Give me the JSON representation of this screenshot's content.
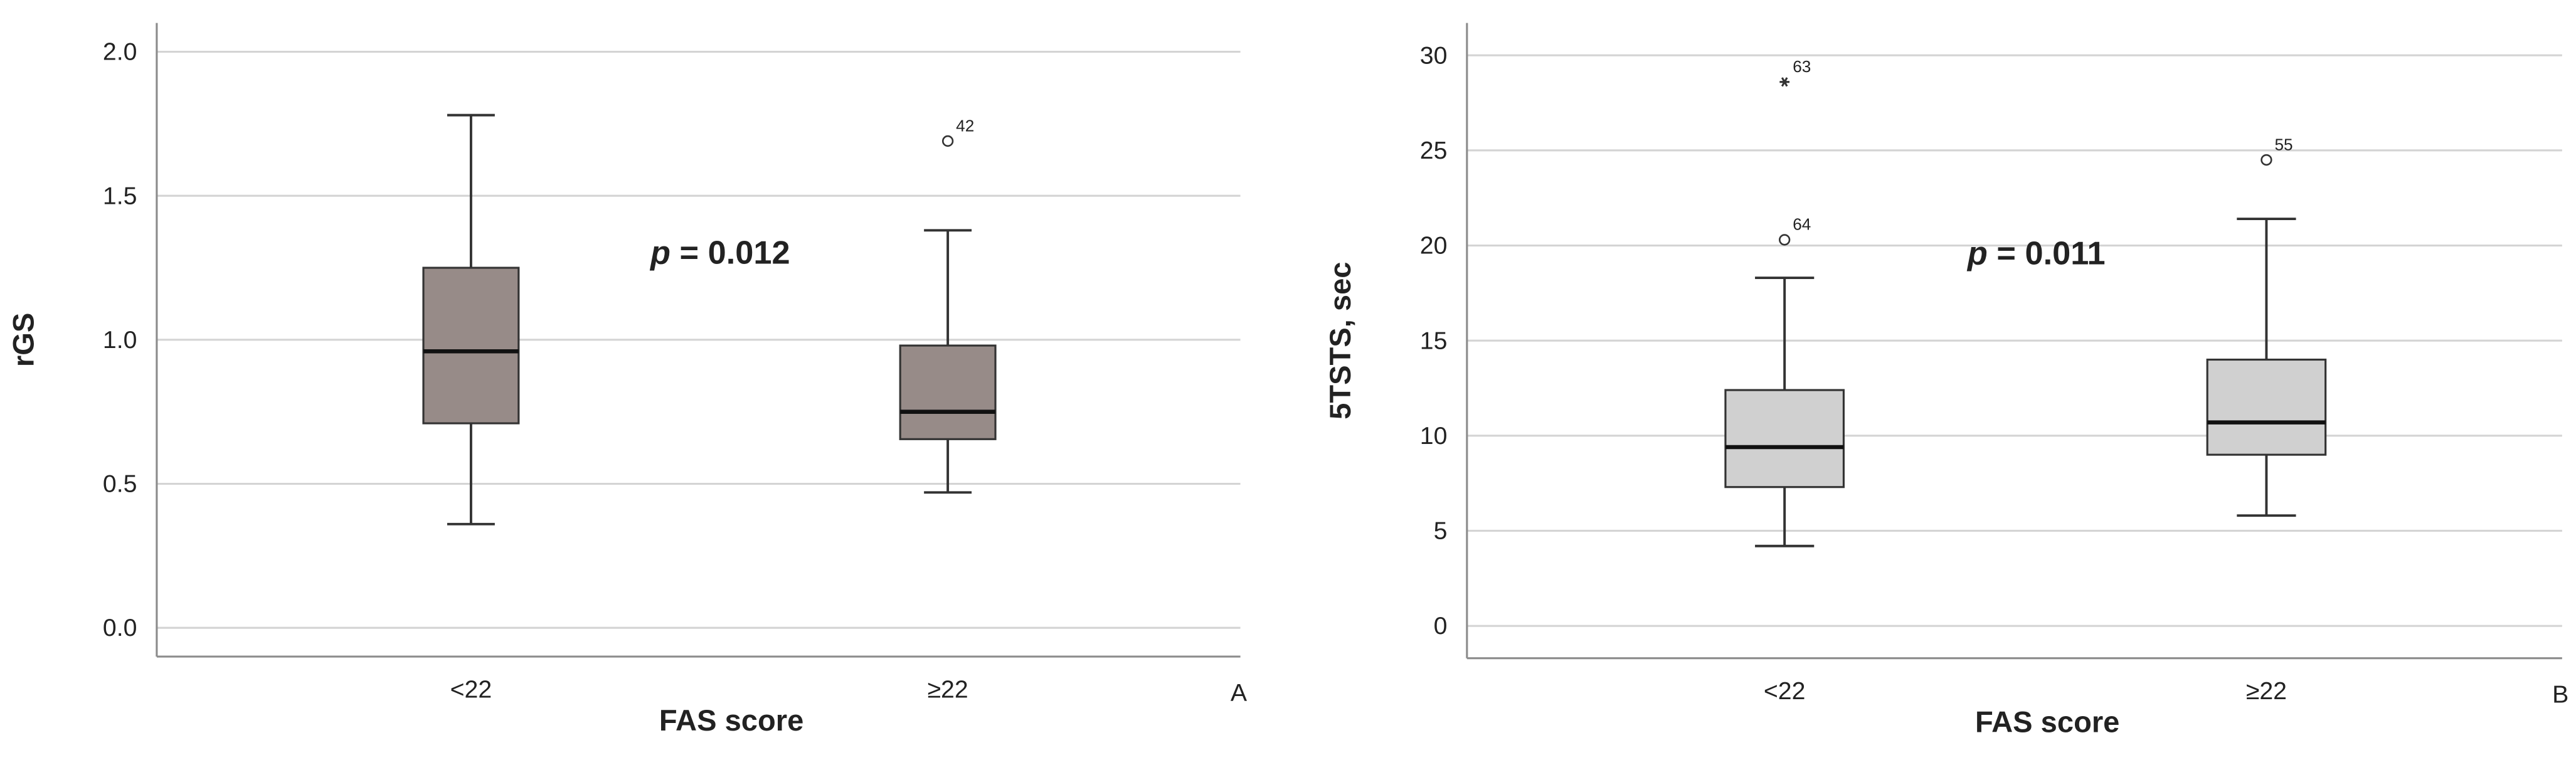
{
  "chart_data": [
    {
      "type": "box",
      "panel_label": "A",
      "x_label": "FAS score",
      "y_label": "rGS",
      "categories": [
        "<22",
        "≥22"
      ],
      "color": "#978b88",
      "grid": true,
      "annotation": {
        "symbol": "p",
        "text": "= 0.012"
      },
      "ylim": [
        -0.1,
        2.1
      ],
      "yticks": [
        {
          "value": 0,
          "label": "0.0"
        },
        {
          "value": 0.5,
          "label": "0.5"
        },
        {
          "value": 1,
          "label": "1.0"
        },
        {
          "value": 1.5,
          "label": "1.5"
        },
        {
          "value": 2,
          "label": "2.0"
        }
      ],
      "boxes": [
        {
          "min": 0.36,
          "q1": 0.71,
          "median": 0.96,
          "q3": 1.25,
          "max": 1.78,
          "outliers": []
        },
        {
          "min": 0.47,
          "q1": 0.655,
          "median": 0.75,
          "q3": 0.98,
          "max": 1.38,
          "outliers": [
            {
              "value": 1.69,
              "case": "42",
              "marker": "circle"
            }
          ]
        }
      ]
    },
    {
      "type": "box",
      "panel_label": "B",
      "x_label": "FAS score",
      "y_label": "5TSTS, sec",
      "categories": [
        "<22",
        "≥22"
      ],
      "color": "#d0d0d0",
      "grid": true,
      "annotation": {
        "symbol": "p",
        "text": "= 0.011"
      },
      "ylim": [
        -1.7,
        31.7
      ],
      "yticks": [
        0,
        5,
        10,
        15,
        20,
        25,
        30
      ],
      "boxes": [
        {
          "min": 4.2,
          "q1": 7.3,
          "median": 9.4,
          "q3": 12.4,
          "max": 18.3,
          "outliers": [
            {
              "value": 20.3,
              "case": "64",
              "marker": "circle"
            },
            {
              "value": 28.6,
              "case": "63",
              "marker": "star"
            }
          ]
        },
        {
          "min": 5.8,
          "q1": 9.0,
          "median": 10.7,
          "q3": 14.0,
          "max": 21.4,
          "outliers": [
            {
              "value": 24.5,
              "case": "55",
              "marker": "circle"
            }
          ]
        }
      ]
    }
  ]
}
